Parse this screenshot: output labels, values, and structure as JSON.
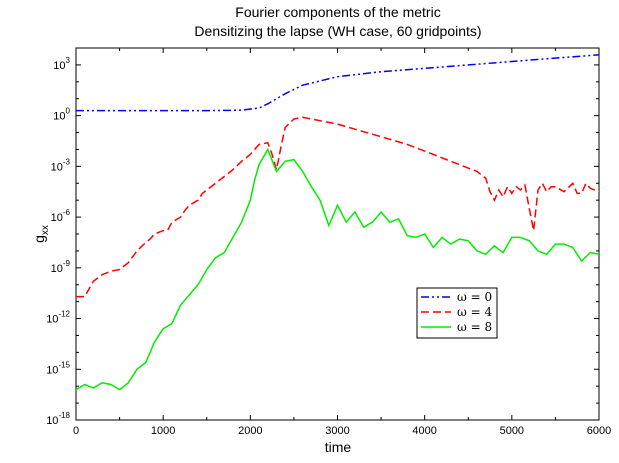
{
  "chart_data": {
    "type": "line",
    "title": "Fourier components of the metric",
    "subtitle": "Densitizing the lapse (WH case, 60 gridpoints)",
    "xlabel": "time",
    "ylabel_main": "g",
    "ylabel_sub": "xx",
    "xlim": [
      0,
      6000
    ],
    "ylim_log10": [
      -18,
      4
    ],
    "y_scale": "log",
    "x_ticks": [
      0,
      1000,
      2000,
      3000,
      4000,
      5000,
      6000
    ],
    "y_tick_base": "10",
    "y_tick_exponents": [
      -18,
      -15,
      -12,
      -9,
      -6,
      -3,
      0,
      3
    ],
    "grid": false,
    "legend_position": "center-right",
    "series": [
      {
        "name": "ω = 0",
        "color": "#0000ff",
        "dash": "dash-dot-dot",
        "x": [
          0,
          500,
          1000,
          1500,
          1900,
          2100,
          2200,
          2400,
          2600,
          3000,
          3500,
          4000,
          4500,
          5000,
          5500,
          6000
        ],
        "log10_y": [
          0.3,
          0.3,
          0.3,
          0.3,
          0.32,
          0.45,
          0.7,
          1.3,
          1.8,
          2.3,
          2.6,
          2.8,
          3.0,
          3.2,
          3.4,
          3.6
        ]
      },
      {
        "name": "ω = 4",
        "color": "#ff0000",
        "dash": "dashed",
        "x": [
          0,
          100,
          200,
          300,
          400,
          500,
          600,
          700,
          800,
          850,
          900,
          1000,
          1050,
          1100,
          1200,
          1250,
          1300,
          1400,
          1450,
          1500,
          1600,
          1700,
          1800,
          1900,
          2000,
          2100,
          2200,
          2250,
          2300,
          2350,
          2400,
          2500,
          2600,
          2700,
          2800,
          2900,
          3000,
          3200,
          3400,
          3600,
          3800,
          4000,
          4200,
          4400,
          4600,
          4700,
          4750,
          4800,
          4850,
          4900,
          4950,
          5000,
          5050,
          5100,
          5150,
          5200,
          5250,
          5300,
          5350,
          5400,
          5450,
          5500,
          5600,
          5700,
          5750,
          5800,
          5850,
          5900,
          6000
        ],
        "log10_y": [
          -10.7,
          -10.7,
          -9.8,
          -9.4,
          -9.2,
          -9.1,
          -8.7,
          -8.0,
          -7.5,
          -7.3,
          -7.0,
          -6.8,
          -6.8,
          -6.3,
          -6.0,
          -5.6,
          -5.3,
          -5.0,
          -4.6,
          -4.4,
          -4.0,
          -3.6,
          -3.2,
          -2.7,
          -2.3,
          -1.7,
          -1.6,
          -2.3,
          -3.2,
          -1.9,
          -0.7,
          -0.2,
          -0.1,
          -0.2,
          -0.3,
          -0.4,
          -0.5,
          -0.8,
          -1.1,
          -1.4,
          -1.7,
          -2.1,
          -2.5,
          -2.9,
          -3.3,
          -3.7,
          -4.5,
          -5.0,
          -4.4,
          -4.8,
          -4.2,
          -4.6,
          -4.2,
          -4.4,
          -4.1,
          -5.5,
          -6.8,
          -4.4,
          -4.0,
          -4.5,
          -4.2,
          -4.2,
          -4.5,
          -4.0,
          -4.6,
          -4.6,
          -4.0,
          -4.3,
          -4.5
        ]
      },
      {
        "name": "ω = 8",
        "color": "#00ee00",
        "dash": "solid",
        "x": [
          0,
          100,
          200,
          300,
          400,
          500,
          600,
          700,
          800,
          850,
          900,
          1000,
          1100,
          1200,
          1300,
          1400,
          1500,
          1600,
          1700,
          1800,
          1900,
          2000,
          2050,
          2100,
          2200,
          2300,
          2400,
          2500,
          2600,
          2700,
          2800,
          2900,
          3000,
          3100,
          3200,
          3300,
          3400,
          3500,
          3600,
          3700,
          3800,
          3900,
          4000,
          4100,
          4200,
          4300,
          4400,
          4500,
          4600,
          4700,
          4800,
          4900,
          5000,
          5100,
          5200,
          5300,
          5400,
          5500,
          5600,
          5700,
          5800,
          5900,
          6000
        ],
        "log10_y": [
          -16.2,
          -15.9,
          -16.1,
          -15.8,
          -15.9,
          -16.2,
          -15.8,
          -15.0,
          -14.6,
          -14.0,
          -13.4,
          -12.6,
          -12.3,
          -11.2,
          -10.6,
          -10.0,
          -9.1,
          -8.4,
          -8.1,
          -7.2,
          -6.3,
          -5.0,
          -3.8,
          -2.9,
          -2.0,
          -3.3,
          -2.7,
          -2.6,
          -3.3,
          -4.2,
          -5.0,
          -6.5,
          -5.3,
          -6.3,
          -5.7,
          -6.6,
          -6.3,
          -5.7,
          -6.3,
          -6.1,
          -7.1,
          -7.2,
          -7.0,
          -7.8,
          -7.2,
          -7.6,
          -7.3,
          -7.4,
          -8.0,
          -8.2,
          -7.7,
          -8.1,
          -7.2,
          -7.2,
          -7.4,
          -8.0,
          -8.2,
          -7.6,
          -7.6,
          -7.8,
          -8.6,
          -8.1,
          -8.2
        ]
      }
    ]
  }
}
